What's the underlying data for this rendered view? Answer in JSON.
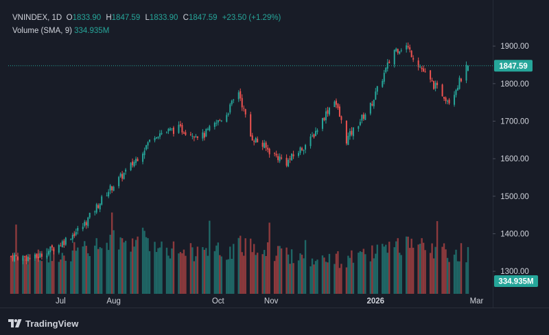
{
  "legend": {
    "symbol": "VNINDEX",
    "interval": "1D",
    "open_key": "O",
    "open": "1833.90",
    "high_key": "H",
    "high": "1847.59",
    "low_key": "L",
    "low": "1833.90",
    "close_key": "C",
    "close": "1847.59",
    "change": "+23.50 (+1.29%)",
    "volume_label": "Volume (SMA, 9)",
    "volume_value": "334.935M"
  },
  "badges": {
    "price": "1847.59",
    "volume": "334.935M"
  },
  "brand": {
    "name": "TradingView"
  },
  "colors": {
    "background": "#181c27",
    "grid": "#262b38",
    "up": "#26a69a",
    "down": "#ef5350",
    "text": "#d1d4dc"
  },
  "chart_data": {
    "type": "candlestick",
    "title": "",
    "xlabel": "",
    "ylabel": "",
    "ylim": [
      1240,
      1935
    ],
    "y_ticks": [
      "1300.00",
      "1400.00",
      "1500.00",
      "1600.00",
      "1700.00",
      "1800.00",
      "1900.00"
    ],
    "x_ticks": [
      {
        "label": "Jul",
        "date": "2025-07-01",
        "bold": false
      },
      {
        "label": "Aug",
        "date": "2025-08-01",
        "bold": false
      },
      {
        "label": "Oct",
        "date": "2025-10-01",
        "bold": false
      },
      {
        "label": "Nov",
        "date": "2025-11-01",
        "bold": false
      },
      {
        "label": "2026",
        "date": "2026-01-01",
        "bold": true
      },
      {
        "label": "Mar",
        "date": "2026-03-01",
        "bold": false
      }
    ],
    "last_close": 1847.59,
    "grid": false,
    "series": [
      {
        "name": "VNINDEX",
        "close_path": [
          [
            "2025-06-02",
            1340
          ],
          [
            "2025-06-16",
            1335
          ],
          [
            "2025-06-30",
            1370
          ],
          [
            "2025-07-14",
            1420
          ],
          [
            "2025-07-28",
            1510
          ],
          [
            "2025-08-11",
            1580
          ],
          [
            "2025-08-25",
            1665
          ],
          [
            "2025-09-08",
            1680
          ],
          [
            "2025-09-22",
            1660
          ],
          [
            "2025-10-06",
            1720
          ],
          [
            "2025-10-13",
            1780
          ],
          [
            "2025-10-20",
            1660
          ],
          [
            "2025-11-03",
            1610
          ],
          [
            "2025-11-10",
            1590
          ],
          [
            "2025-11-24",
            1650
          ],
          [
            "2025-12-08",
            1760
          ],
          [
            "2025-12-15",
            1650
          ],
          [
            "2025-12-29",
            1740
          ],
          [
            "2026-01-12",
            1890
          ],
          [
            "2026-01-19",
            1900
          ],
          [
            "2026-02-02",
            1805
          ],
          [
            "2026-02-13",
            1755
          ],
          [
            "2026-02-24",
            1847.59
          ]
        ]
      },
      {
        "name": "Volume",
        "scale_max_millions": 1000,
        "shape": [
          [
            "2025-06-02",
            280
          ],
          [
            "2025-06-16",
            260
          ],
          [
            "2025-07-01",
            300
          ],
          [
            "2025-07-20",
            330
          ],
          [
            "2025-08-05",
            400
          ],
          [
            "2025-08-20",
            390
          ],
          [
            "2025-09-10",
            320
          ],
          [
            "2025-10-01",
            300
          ],
          [
            "2025-10-20",
            360
          ],
          [
            "2025-11-10",
            290
          ],
          [
            "2025-12-01",
            240
          ],
          [
            "2025-12-20",
            260
          ],
          [
            "2026-01-10",
            320
          ],
          [
            "2026-01-20",
            340
          ],
          [
            "2026-02-10",
            310
          ],
          [
            "2026-02-24",
            300
          ]
        ]
      }
    ]
  }
}
